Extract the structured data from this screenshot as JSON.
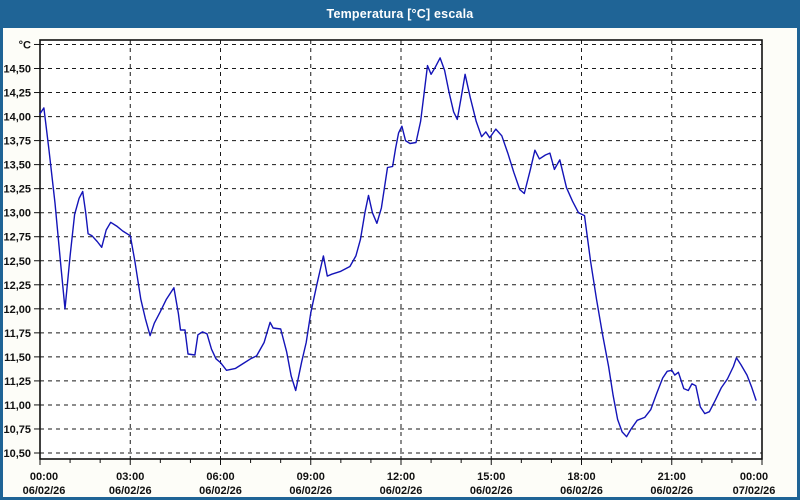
{
  "header": {
    "window_title": "Temperatura [°C] escala"
  },
  "colors": {
    "titlebar_bg": "#1f6496",
    "window_frame": "#1f6496",
    "content_bg": "#fdfdf8",
    "plot_bg": "#ffffff",
    "grid": "#1a1a1a",
    "series_line": "#1414b8",
    "label_text": "#111111"
  },
  "chart_data": {
    "type": "line",
    "title": "Temperatura [°C] escala",
    "xlabel": "",
    "ylabel": "°C",
    "unit_label": "°C",
    "grid": "dashed",
    "legend_position": "none",
    "ylim": [
      10.44,
      14.8
    ],
    "y_axis": {
      "gridline_step": 0.25,
      "gridlines": [
        10.5,
        10.75,
        11.0,
        11.25,
        11.5,
        11.75,
        12.0,
        12.25,
        12.5,
        12.75,
        13.0,
        13.25,
        13.5,
        13.75,
        14.0,
        14.25,
        14.5,
        14.75
      ],
      "tick_labels": [
        {
          "value": 14.5,
          "label": "14,50"
        },
        {
          "value": 14.25,
          "label": "14,25"
        },
        {
          "value": 14.0,
          "label": "14,00"
        },
        {
          "value": 13.75,
          "label": "13,75"
        },
        {
          "value": 13.5,
          "label": "13,50"
        },
        {
          "value": 13.25,
          "label": "13,25"
        },
        {
          "value": 13.0,
          "label": "13,00"
        },
        {
          "value": 12.75,
          "label": "12,75"
        },
        {
          "value": 12.5,
          "label": "12,50"
        },
        {
          "value": 12.25,
          "label": "12,25"
        },
        {
          "value": 12.0,
          "label": "12,00"
        },
        {
          "value": 11.75,
          "label": "11,75"
        },
        {
          "value": 11.5,
          "label": "11,50"
        },
        {
          "value": 11.25,
          "label": "11,25"
        },
        {
          "value": 11.0,
          "label": "11,00"
        },
        {
          "value": 10.75,
          "label": "10,75"
        },
        {
          "value": 10.5,
          "label": "10,50"
        }
      ],
      "unit_label_value": 14.75
    },
    "x_axis": {
      "span_hours": 24,
      "minor_tick_every_hours": 1,
      "gridline_hours": [
        3,
        6,
        9,
        12,
        15,
        18,
        21
      ],
      "major_ticks": [
        {
          "hour": 0,
          "time": "00:00",
          "date": "06/02/26"
        },
        {
          "hour": 3,
          "time": "03:00",
          "date": "06/02/26"
        },
        {
          "hour": 6,
          "time": "06:00",
          "date": "06/02/26"
        },
        {
          "hour": 9,
          "time": "09:00",
          "date": "06/02/26"
        },
        {
          "hour": 12,
          "time": "12:00",
          "date": "06/02/26"
        },
        {
          "hour": 15,
          "time": "15:00",
          "date": "06/02/26"
        },
        {
          "hour": 18,
          "time": "18:00",
          "date": "06/02/26"
        },
        {
          "hour": 21,
          "time": "21:00",
          "date": "06/02/26"
        },
        {
          "hour": 24,
          "time": "00:00",
          "date": "07/02/26"
        }
      ]
    },
    "series": [
      {
        "name": "Temperatura",
        "color": "#1414b8",
        "points": [
          [
            0.0,
            14.03
          ],
          [
            0.13,
            14.09
          ],
          [
            0.3,
            13.65
          ],
          [
            0.5,
            13.1
          ],
          [
            0.7,
            12.42
          ],
          [
            0.83,
            12.0
          ],
          [
            1.0,
            12.55
          ],
          [
            1.15,
            12.98
          ],
          [
            1.3,
            13.15
          ],
          [
            1.42,
            13.22
          ],
          [
            1.52,
            13.0
          ],
          [
            1.6,
            12.78
          ],
          [
            1.73,
            12.76
          ],
          [
            1.9,
            12.7
          ],
          [
            2.05,
            12.64
          ],
          [
            2.2,
            12.82
          ],
          [
            2.35,
            12.9
          ],
          [
            2.55,
            12.86
          ],
          [
            2.75,
            12.81
          ],
          [
            3.0,
            12.76
          ],
          [
            3.15,
            12.5
          ],
          [
            3.35,
            12.1
          ],
          [
            3.5,
            11.9
          ],
          [
            3.66,
            11.72
          ],
          [
            3.8,
            11.85
          ],
          [
            4.0,
            11.97
          ],
          [
            4.2,
            12.1
          ],
          [
            4.45,
            12.22
          ],
          [
            4.6,
            11.95
          ],
          [
            4.67,
            11.78
          ],
          [
            4.82,
            11.78
          ],
          [
            4.92,
            11.53
          ],
          [
            5.15,
            11.52
          ],
          [
            5.25,
            11.73
          ],
          [
            5.4,
            11.76
          ],
          [
            5.55,
            11.74
          ],
          [
            5.7,
            11.58
          ],
          [
            5.85,
            11.48
          ],
          [
            6.0,
            11.44
          ],
          [
            6.2,
            11.36
          ],
          [
            6.5,
            11.38
          ],
          [
            6.8,
            11.44
          ],
          [
            7.0,
            11.48
          ],
          [
            7.2,
            11.51
          ],
          [
            7.45,
            11.65
          ],
          [
            7.65,
            11.86
          ],
          [
            7.75,
            11.8
          ],
          [
            8.0,
            11.79
          ],
          [
            8.2,
            11.55
          ],
          [
            8.35,
            11.3
          ],
          [
            8.5,
            11.15
          ],
          [
            8.7,
            11.45
          ],
          [
            8.85,
            11.65
          ],
          [
            9.0,
            11.96
          ],
          [
            9.2,
            12.25
          ],
          [
            9.42,
            12.55
          ],
          [
            9.55,
            12.34
          ],
          [
            9.7,
            12.36
          ],
          [
            10.0,
            12.39
          ],
          [
            10.3,
            12.44
          ],
          [
            10.5,
            12.55
          ],
          [
            10.65,
            12.72
          ],
          [
            10.8,
            13.0
          ],
          [
            10.92,
            13.18
          ],
          [
            11.05,
            13.0
          ],
          [
            11.2,
            12.89
          ],
          [
            11.35,
            13.05
          ],
          [
            11.55,
            13.47
          ],
          [
            11.72,
            13.48
          ],
          [
            11.82,
            13.67
          ],
          [
            11.92,
            13.83
          ],
          [
            12.03,
            13.9
          ],
          [
            12.15,
            13.75
          ],
          [
            12.3,
            13.72
          ],
          [
            12.5,
            13.73
          ],
          [
            12.65,
            13.95
          ],
          [
            12.77,
            14.25
          ],
          [
            12.88,
            14.53
          ],
          [
            13.0,
            14.44
          ],
          [
            13.15,
            14.52
          ],
          [
            13.3,
            14.61
          ],
          [
            13.45,
            14.48
          ],
          [
            13.6,
            14.25
          ],
          [
            13.75,
            14.05
          ],
          [
            13.87,
            13.97
          ],
          [
            14.0,
            14.2
          ],
          [
            14.13,
            14.44
          ],
          [
            14.3,
            14.2
          ],
          [
            14.5,
            13.95
          ],
          [
            14.68,
            13.79
          ],
          [
            14.82,
            13.84
          ],
          [
            14.95,
            13.78
          ],
          [
            15.15,
            13.87
          ],
          [
            15.35,
            13.8
          ],
          [
            15.55,
            13.62
          ],
          [
            15.75,
            13.42
          ],
          [
            15.95,
            13.24
          ],
          [
            16.1,
            13.2
          ],
          [
            16.3,
            13.45
          ],
          [
            16.45,
            13.65
          ],
          [
            16.6,
            13.56
          ],
          [
            16.8,
            13.6
          ],
          [
            16.95,
            13.62
          ],
          [
            17.1,
            13.45
          ],
          [
            17.28,
            13.55
          ],
          [
            17.5,
            13.26
          ],
          [
            17.7,
            13.12
          ],
          [
            17.9,
            13.0
          ],
          [
            18.1,
            12.97
          ],
          [
            18.3,
            12.5
          ],
          [
            18.5,
            12.1
          ],
          [
            18.7,
            11.73
          ],
          [
            18.9,
            11.4
          ],
          [
            19.05,
            11.1
          ],
          [
            19.2,
            10.85
          ],
          [
            19.35,
            10.72
          ],
          [
            19.5,
            10.67
          ],
          [
            19.65,
            10.75
          ],
          [
            19.85,
            10.84
          ],
          [
            20.1,
            10.87
          ],
          [
            20.3,
            10.95
          ],
          [
            20.5,
            11.12
          ],
          [
            20.7,
            11.28
          ],
          [
            20.85,
            11.35
          ],
          [
            21.0,
            11.36
          ],
          [
            21.1,
            11.31
          ],
          [
            21.22,
            11.34
          ],
          [
            21.4,
            11.17
          ],
          [
            21.55,
            11.15
          ],
          [
            21.67,
            11.22
          ],
          [
            21.8,
            11.2
          ],
          [
            21.95,
            10.98
          ],
          [
            22.1,
            10.91
          ],
          [
            22.25,
            10.93
          ],
          [
            22.45,
            11.05
          ],
          [
            22.65,
            11.18
          ],
          [
            22.85,
            11.27
          ],
          [
            23.05,
            11.4
          ],
          [
            23.15,
            11.49
          ],
          [
            23.3,
            11.42
          ],
          [
            23.5,
            11.31
          ],
          [
            23.65,
            11.19
          ],
          [
            23.8,
            11.05
          ]
        ]
      }
    ]
  }
}
